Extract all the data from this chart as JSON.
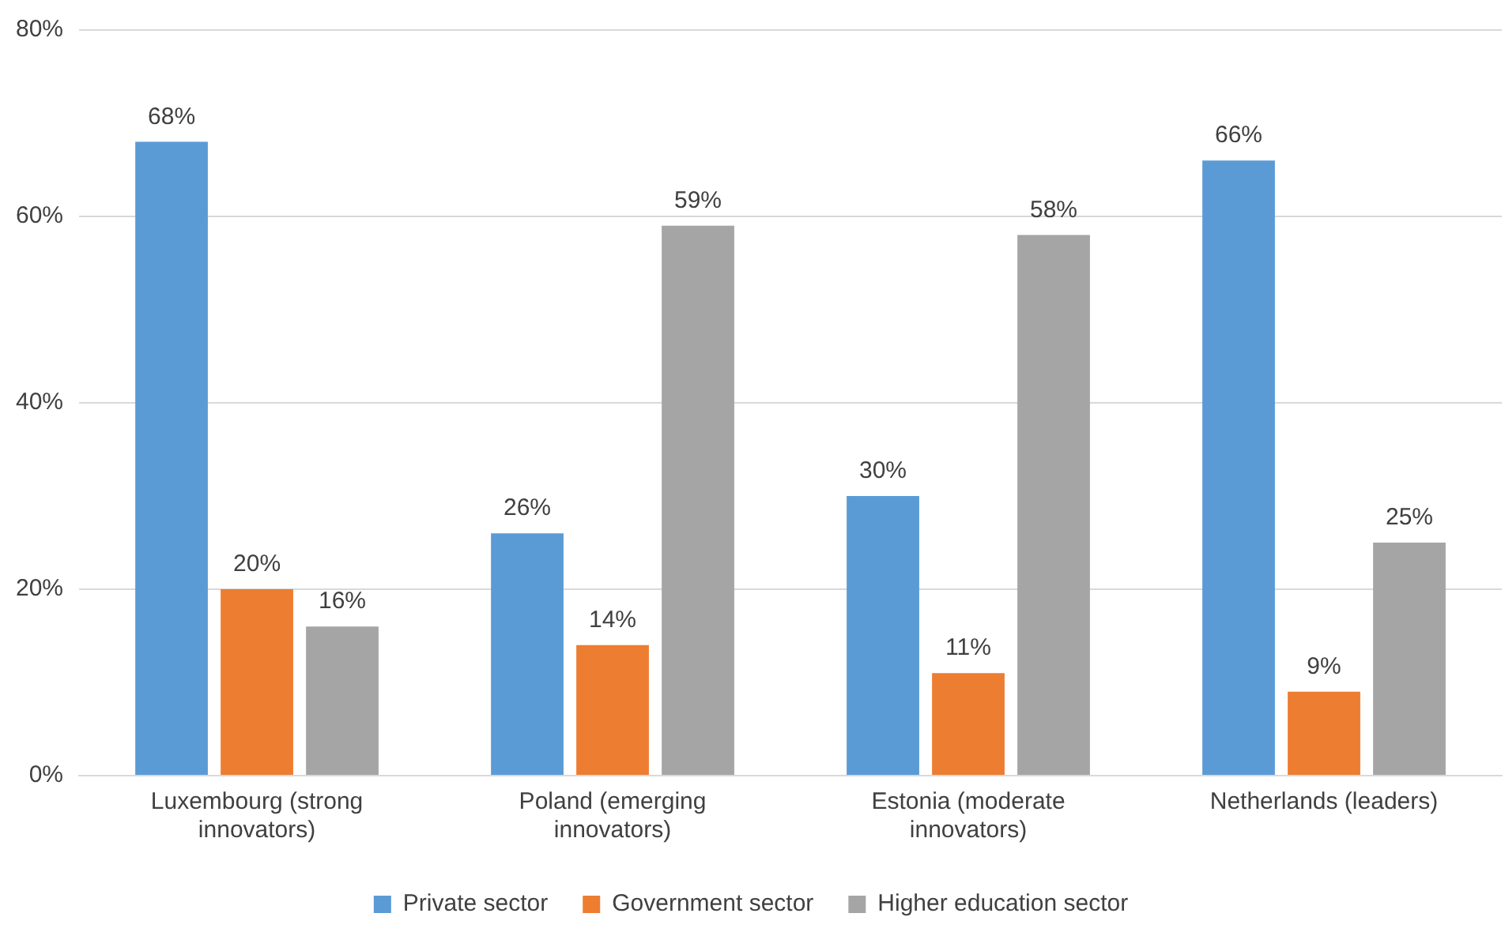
{
  "chart_data": {
    "type": "bar",
    "categories": [
      "Luxembourg (strong innovators)",
      "Poland (emerging innovators)",
      "Estonia (moderate innovators)",
      "Netherlands (leaders)"
    ],
    "series": [
      {
        "name": "Private sector",
        "color": "#5b9bd5",
        "values": [
          68,
          26,
          30,
          66
        ],
        "value_labels": [
          "68%",
          "26%",
          "30%",
          "66%"
        ]
      },
      {
        "name": "Government sector",
        "color": "#ed7d31",
        "values": [
          20,
          14,
          11,
          9
        ],
        "value_labels": [
          "20%",
          "14%",
          "11%",
          "9%"
        ]
      },
      {
        "name": "Higher education sector",
        "color": "#a5a5a5",
        "values": [
          16,
          59,
          58,
          25
        ],
        "value_labels": [
          "16%",
          "59%",
          "58%",
          "25%"
        ]
      }
    ],
    "ylim": [
      0,
      80
    ],
    "yticks": [
      {
        "value": 0,
        "label": "0%"
      },
      {
        "value": 20,
        "label": "20%"
      },
      {
        "value": 40,
        "label": "40%"
      },
      {
        "value": 60,
        "label": "60%"
      },
      {
        "value": 80,
        "label": "80%"
      }
    ],
    "grid": "y",
    "legend": "bottom"
  }
}
